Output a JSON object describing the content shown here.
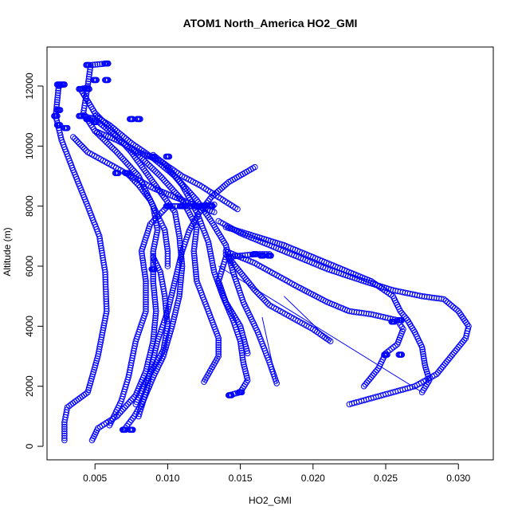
{
  "chart_data": {
    "type": "scatter",
    "title": "ATOM1 North_America HO2_GMI",
    "xlabel": "HO2_GMI",
    "ylabel": "Altitude (m)",
    "xlim": [
      0.0017,
      0.0324
    ],
    "ylim": [
      -450,
      13300
    ],
    "xticks": [
      0.005,
      0.01,
      0.015,
      0.02,
      0.025,
      0.03
    ],
    "xtick_labels": [
      "0.005",
      "0.010",
      "0.015",
      "0.020",
      "0.025",
      "0.030"
    ],
    "yticks": [
      0,
      2000,
      4000,
      6000,
      8000,
      10000,
      12000
    ],
    "ytick_labels": [
      "0",
      "2000",
      "4000",
      "6000",
      "8000",
      "10000",
      "12000"
    ],
    "marker": "open-circle",
    "color": "#0000ff",
    "grid": false,
    "profiles": [
      [
        [
          0.0029,
          200
        ],
        [
          0.0029,
          800
        ],
        [
          0.0031,
          1300
        ],
        [
          0.0045,
          1800
        ],
        [
          0.0052,
          3000
        ],
        [
          0.0058,
          4500
        ],
        [
          0.0057,
          5800
        ],
        [
          0.0053,
          7000
        ],
        [
          0.0045,
          8000
        ],
        [
          0.0035,
          9200
        ],
        [
          0.0027,
          10200
        ],
        [
          0.0023,
          11000
        ],
        [
          0.0025,
          12000
        ],
        [
          0.0028,
          12050
        ]
      ],
      [
        [
          0.0048,
          200
        ],
        [
          0.0052,
          600
        ],
        [
          0.0065,
          1000
        ],
        [
          0.0078,
          1700
        ],
        [
          0.0085,
          2500
        ],
        [
          0.009,
          3500
        ],
        [
          0.0092,
          4500
        ],
        [
          0.009,
          5500
        ],
        [
          0.009,
          6500
        ],
        [
          0.0093,
          7200
        ],
        [
          0.009,
          8000
        ],
        [
          0.008,
          9000
        ],
        [
          0.0065,
          9800
        ],
        [
          0.005,
          10500
        ],
        [
          0.0042,
          11100
        ],
        [
          0.0045,
          12000
        ],
        [
          0.0047,
          12700
        ],
        [
          0.0058,
          12750
        ]
      ],
      [
        [
          0.007,
          550
        ],
        [
          0.0077,
          1000
        ],
        [
          0.0083,
          1500
        ],
        [
          0.009,
          2300
        ],
        [
          0.0097,
          3000
        ],
        [
          0.0103,
          4000
        ],
        [
          0.0108,
          5000
        ],
        [
          0.011,
          6000
        ],
        [
          0.0108,
          7000
        ],
        [
          0.0105,
          7800
        ],
        [
          0.009,
          8800
        ],
        [
          0.0075,
          9800
        ],
        [
          0.006,
          10600
        ],
        [
          0.005,
          11100
        ],
        [
          0.004,
          11900
        ],
        [
          0.0045,
          11950
        ]
      ],
      [
        [
          0.006,
          700
        ],
        [
          0.0068,
          1500
        ],
        [
          0.0073,
          2300
        ],
        [
          0.0078,
          3500
        ],
        [
          0.0085,
          4500
        ],
        [
          0.0085,
          5500
        ],
        [
          0.0082,
          6500
        ],
        [
          0.0088,
          7400
        ],
        [
          0.01,
          8000
        ],
        [
          0.012,
          8000
        ],
        [
          0.0132,
          8050
        ]
      ],
      [
        [
          0.008,
          1000
        ],
        [
          0.0085,
          1800
        ],
        [
          0.0088,
          2500
        ],
        [
          0.0093,
          3500
        ],
        [
          0.01,
          4500
        ],
        [
          0.0105,
          5500
        ],
        [
          0.011,
          6500
        ],
        [
          0.0115,
          7200
        ],
        [
          0.0122,
          7800
        ],
        [
          0.013,
          8300
        ],
        [
          0.0142,
          8800
        ],
        [
          0.016,
          9300
        ]
      ],
      [
        [
          0.0142,
          1700
        ],
        [
          0.015,
          1800
        ],
        [
          0.0155,
          2200
        ],
        [
          0.0152,
          2800
        ],
        [
          0.015,
          3500
        ],
        [
          0.0145,
          4200
        ],
        [
          0.0138,
          5000
        ],
        [
          0.0132,
          5800
        ],
        [
          0.0128,
          6800
        ],
        [
          0.012,
          7800
        ],
        [
          0.011,
          8700
        ],
        [
          0.0098,
          9400
        ],
        [
          0.009,
          9700
        ]
      ],
      [
        [
          0.0125,
          2150
        ],
        [
          0.0135,
          3000
        ],
        [
          0.0135,
          3600
        ],
        [
          0.0128,
          4500
        ],
        [
          0.012,
          5500
        ],
        [
          0.0118,
          6500
        ],
        [
          0.012,
          7300
        ],
        [
          0.011,
          8200
        ],
        [
          0.0095,
          9000
        ],
        [
          0.008,
          9700
        ],
        [
          0.0065,
          10300
        ],
        [
          0.005,
          10900
        ],
        [
          0.0042,
          11000
        ]
      ],
      [
        [
          0.0175,
          2100
        ],
        [
          0.017,
          2800
        ],
        [
          0.0162,
          3800
        ],
        [
          0.0152,
          4800
        ],
        [
          0.0145,
          5800
        ],
        [
          0.014,
          6700
        ],
        [
          0.013,
          7500
        ],
        [
          0.012,
          8200
        ],
        [
          0.0105,
          9000
        ],
        [
          0.009,
          9600
        ],
        [
          0.0075,
          10100
        ],
        [
          0.006,
          10700
        ],
        [
          0.005,
          11000
        ]
      ],
      [
        [
          0.0155,
          3100
        ],
        [
          0.015,
          4000
        ],
        [
          0.014,
          4800
        ],
        [
          0.0135,
          5500
        ],
        [
          0.014,
          6300
        ],
        [
          0.016,
          6400
        ],
        [
          0.017,
          6400
        ]
      ],
      [
        [
          0.0225,
          1400
        ],
        [
          0.024,
          1600
        ],
        [
          0.0255,
          1800
        ],
        [
          0.027,
          2000
        ],
        [
          0.0285,
          2400
        ],
        [
          0.0295,
          3000
        ],
        [
          0.0305,
          3600
        ],
        [
          0.0307,
          4000
        ],
        [
          0.03,
          4500
        ],
        [
          0.029,
          4900
        ],
        [
          0.0275,
          5000
        ],
        [
          0.0255,
          5200
        ],
        [
          0.0235,
          5500
        ],
        [
          0.021,
          5900
        ],
        [
          0.019,
          6300
        ],
        [
          0.017,
          6700
        ],
        [
          0.015,
          7100
        ],
        [
          0.0135,
          7500
        ]
      ],
      [
        [
          0.0275,
          1800
        ],
        [
          0.028,
          2200
        ],
        [
          0.0277,
          2700
        ],
        [
          0.0275,
          3300
        ],
        [
          0.027,
          3800
        ],
        [
          0.0265,
          4200
        ],
        [
          0.026,
          4500
        ],
        [
          0.0255,
          5000
        ],
        [
          0.024,
          5500
        ],
        [
          0.022,
          5900
        ],
        [
          0.02,
          6300
        ],
        [
          0.018,
          6700
        ],
        [
          0.016,
          7000
        ],
        [
          0.014,
          7300
        ]
      ],
      [
        [
          0.0235,
          2000
        ],
        [
          0.0245,
          2600
        ],
        [
          0.025,
          3100
        ],
        [
          0.0258,
          3400
        ],
        [
          0.0262,
          3900
        ],
        [
          0.0258,
          4200
        ],
        [
          0.024,
          4400
        ],
        [
          0.0225,
          4500
        ],
        [
          0.021,
          4800
        ],
        [
          0.019,
          5300
        ],
        [
          0.0175,
          5700
        ],
        [
          0.016,
          6100
        ],
        [
          0.014,
          6500
        ]
      ],
      [
        [
          0.0212,
          3500
        ],
        [
          0.02,
          3900
        ],
        [
          0.0185,
          4300
        ],
        [
          0.017,
          4700
        ],
        [
          0.016,
          5200
        ],
        [
          0.015,
          5800
        ],
        [
          0.014,
          6400
        ]
      ],
      [
        [
          0.0035,
          10300
        ],
        [
          0.0045,
          9800
        ],
        [
          0.006,
          9400
        ],
        [
          0.0075,
          9000
        ],
        [
          0.009,
          8600
        ],
        [
          0.0105,
          8300
        ],
        [
          0.012,
          8000
        ],
        [
          0.0132,
          7800
        ]
      ],
      [
        [
          0.009,
          6300
        ],
        [
          0.0095,
          5800
        ],
        [
          0.0098,
          5000
        ],
        [
          0.01,
          4000
        ],
        [
          0.0097,
          3200
        ],
        [
          0.009,
          2600
        ],
        [
          0.0083,
          2000
        ],
        [
          0.0078,
          1400
        ]
      ],
      [
        [
          0.0072,
          9100
        ],
        [
          0.008,
          8700
        ],
        [
          0.0088,
          8200
        ],
        [
          0.0092,
          7800
        ],
        [
          0.0098,
          7200
        ],
        [
          0.01,
          6500
        ],
        [
          0.01,
          6000
        ]
      ],
      [
        [
          0.005,
          10500
        ],
        [
          0.0065,
          10200
        ],
        [
          0.008,
          9800
        ],
        [
          0.0095,
          9500
        ],
        [
          0.011,
          9000
        ],
        [
          0.0122,
          8700
        ],
        [
          0.0135,
          8300
        ],
        [
          0.0148,
          7900
        ]
      ]
    ],
    "connectors": [
      [
        [
          0.0125,
          2150
        ],
        [
          0.0135,
          3000
        ]
      ],
      [
        [
          0.0135,
          6000
        ],
        [
          0.0275,
          1800
        ]
      ],
      [
        [
          0.0165,
          4300
        ],
        [
          0.0175,
          2100
        ]
      ],
      [
        [
          0.018,
          5000
        ],
        [
          0.0212,
          3500
        ]
      ]
    ],
    "dense_markers": [
      [
        0.0045,
        12700
      ],
      [
        0.0058,
        12750
      ],
      [
        0.005,
        12200
      ],
      [
        0.0058,
        12200
      ],
      [
        0.0025,
        12050
      ],
      [
        0.0028,
        12050
      ],
      [
        0.004,
        11900
      ],
      [
        0.0045,
        11900
      ],
      [
        0.0023,
        11000
      ],
      [
        0.0025,
        11200
      ],
      [
        0.0025,
        10700
      ],
      [
        0.003,
        10600
      ],
      [
        0.0045,
        10900
      ],
      [
        0.005,
        10800
      ],
      [
        0.004,
        11000
      ],
      [
        0.0075,
        10900
      ],
      [
        0.008,
        10900
      ],
      [
        0.009,
        9650
      ],
      [
        0.01,
        9650
      ],
      [
        0.0065,
        9100
      ],
      [
        0.0072,
        9100
      ],
      [
        0.01,
        8000
      ],
      [
        0.011,
        8000
      ],
      [
        0.012,
        8000
      ],
      [
        0.0125,
        8000
      ],
      [
        0.013,
        8000
      ],
      [
        0.016,
        6400
      ],
      [
        0.0165,
        6350
      ],
      [
        0.017,
        6350
      ],
      [
        0.025,
        3050
      ],
      [
        0.026,
        3050
      ],
      [
        0.026,
        4200
      ],
      [
        0.0255,
        4150
      ],
      [
        0.0075,
        550
      ],
      [
        0.007,
        550
      ],
      [
        0.0143,
        1700
      ],
      [
        0.015,
        1800
      ],
      [
        0.009,
        5900
      ]
    ]
  }
}
